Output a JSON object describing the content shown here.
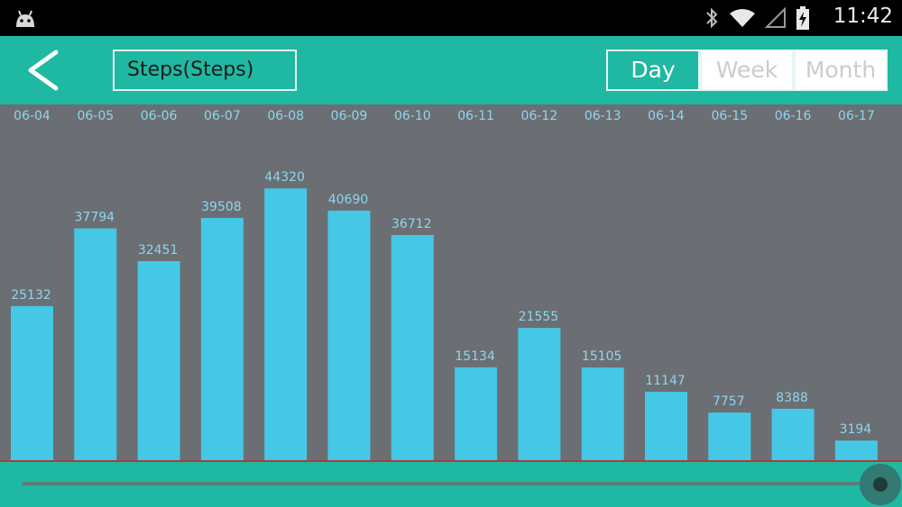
{
  "status_bar": {
    "time": "11:42",
    "icons": [
      "android-icon",
      "bluetooth-icon",
      "wifi-icon",
      "signal-icon",
      "battery-charging-icon"
    ]
  },
  "toolbar": {
    "back_icon": "chevron-left-icon",
    "title": "Steps(Steps)",
    "segments": [
      {
        "label": "Day",
        "active": true
      },
      {
        "label": "Week",
        "active": false
      },
      {
        "label": "Month",
        "active": false
      }
    ]
  },
  "colors": {
    "accent": "#1fb8a2",
    "bar": "#45c8e6",
    "label": "#8ed6ee",
    "chart_bg": "#6b6e73"
  },
  "slider": {
    "position": 1.0
  },
  "chart_data": {
    "type": "bar",
    "categories": [
      "06-04",
      "06-05",
      "06-06",
      "06-07",
      "06-08",
      "06-09",
      "06-10",
      "06-11",
      "06-12",
      "06-13",
      "06-14",
      "06-15",
      "06-16",
      "06-17"
    ],
    "values": [
      25132,
      37794,
      32451,
      39508,
      44320,
      40690,
      36712,
      15134,
      21555,
      15105,
      11147,
      7757,
      8388,
      3194
    ],
    "ylim": [
      0,
      58000
    ],
    "grid": false,
    "data_labels": true
  }
}
